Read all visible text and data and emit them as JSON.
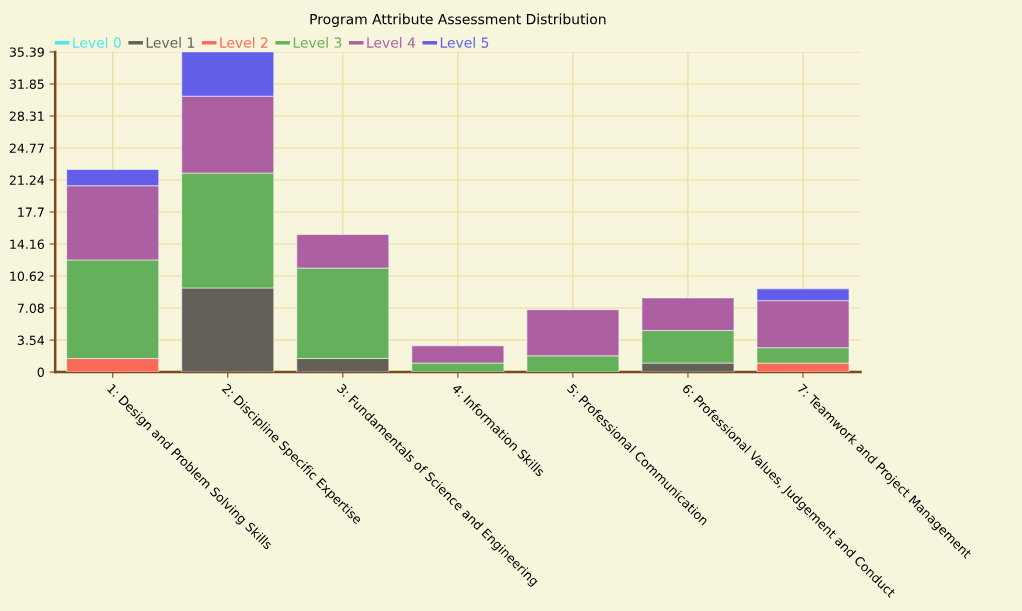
{
  "chart_data": {
    "type": "bar",
    "title": "Program Attribute Assessment Distribution",
    "stacked": true,
    "categories": [
      "1: Design and Problem Solving Skills",
      "2: Discipline Specific Expertise",
      "3: Fundamentals of Science and Engineering",
      "4: Information Skills",
      "5: Professional Communication",
      "6: Professional Values, Judgement and Conduct",
      "7: Teamwork and Project Management"
    ],
    "series": [
      {
        "name": "Level 0",
        "color": "#4ee8e8",
        "values": [
          null,
          null,
          null,
          null,
          null,
          null,
          null
        ]
      },
      {
        "name": "Level 1",
        "color": "#636157",
        "values": [
          null,
          9.3,
          1.5,
          null,
          null,
          1.0,
          null
        ]
      },
      {
        "name": "Level 2",
        "color": "#f96b59",
        "values": [
          1.5,
          null,
          null,
          null,
          null,
          null,
          1.0
        ]
      },
      {
        "name": "Level 3",
        "color": "#65b05a",
        "values": [
          10.9,
          12.7,
          10.0,
          1.0,
          1.8,
          3.6,
          1.7
        ]
      },
      {
        "name": "Level 4",
        "color": "#ac60a2",
        "values": [
          8.2,
          8.5,
          3.7,
          1.9,
          5.1,
          3.6,
          5.2
        ]
      },
      {
        "name": "Level 5",
        "color": "#635ee8",
        "values": [
          1.8,
          4.9,
          null,
          null,
          null,
          null,
          1.3
        ]
      }
    ],
    "ylim": [
      0,
      35.39
    ],
    "yticks": [
      0,
      3.54,
      7.08,
      10.62,
      14.16,
      17.7,
      21.24,
      24.77,
      28.31,
      31.85,
      35.39
    ],
    "grid": true,
    "legend": "top left"
  }
}
